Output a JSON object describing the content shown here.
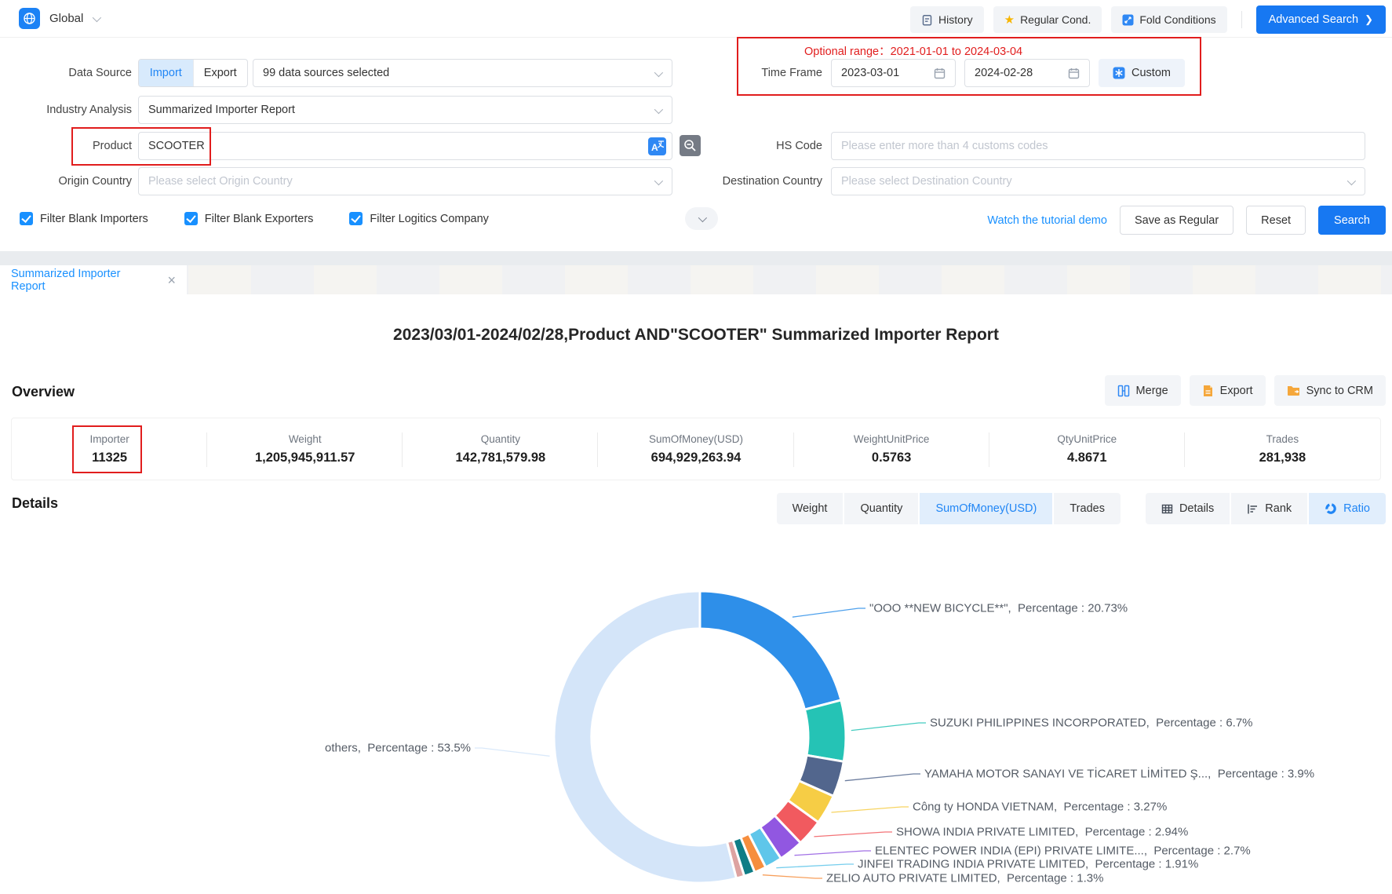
{
  "colors": {
    "accent": "#1778f2",
    "link": "#1890ff",
    "annotation": "#e11d1d",
    "star": "#f7b500",
    "doc_orange": "#f5a73b"
  },
  "topbar": {
    "region": "Global",
    "history": "History",
    "regular_cond": "Regular Cond.",
    "fold_conditions": "Fold Conditions",
    "advanced_search": "Advanced Search"
  },
  "form": {
    "data_source": {
      "label": "Data Source",
      "import": "Import",
      "export": "Export",
      "sources_value": "99 data sources selected"
    },
    "industry": {
      "label": "Industry Analysis",
      "value": "Summarized Importer Report"
    },
    "product": {
      "label": "Product",
      "value": "SCOOTER"
    },
    "origin": {
      "label": "Origin Country",
      "placeholder": "Please select Origin Country"
    },
    "hs_code": {
      "label": "HS Code",
      "placeholder": "Please enter more than 4 customs codes"
    },
    "destination": {
      "label": "Destination Country",
      "placeholder": "Please select Destination Country"
    },
    "time_frame": {
      "label": "Time Frame",
      "start": "2023-03-01",
      "end": "2024-02-28",
      "custom": "Custom",
      "optional_range": "Optional range：2021-01-01 to 2024-03-04"
    },
    "checkboxes": [
      {
        "label": "Filter Blank Importers",
        "checked": true
      },
      {
        "label": "Filter Blank Exporters",
        "checked": true
      },
      {
        "label": "Filter Logitics Company",
        "checked": true
      }
    ],
    "actions": {
      "tutorial": "Watch the tutorial demo",
      "save": "Save as Regular",
      "reset": "Reset",
      "search": "Search"
    }
  },
  "tabs": {
    "active": "Summarized Importer Report"
  },
  "report": {
    "title": "2023/03/01-2024/02/28,Product AND\"SCOOTER\" Summarized Importer Report"
  },
  "overview": {
    "heading": "Overview",
    "buttons": {
      "merge": "Merge",
      "export": "Export",
      "sync": "Sync to CRM"
    },
    "stats": [
      {
        "label": "Importer",
        "value": "11325"
      },
      {
        "label": "Weight",
        "value": "1,205,945,911.57"
      },
      {
        "label": "Quantity",
        "value": "142,781,579.98"
      },
      {
        "label": "SumOfMoney(USD)",
        "value": "694,929,263.94"
      },
      {
        "label": "WeightUnitPrice",
        "value": "0.5763"
      },
      {
        "label": "QtyUnitPrice",
        "value": "4.8671"
      },
      {
        "label": "Trades",
        "value": "281,938"
      }
    ]
  },
  "details": {
    "heading": "Details",
    "metric_tabs": [
      {
        "label": "Weight",
        "active": false
      },
      {
        "label": "Quantity",
        "active": false
      },
      {
        "label": "SumOfMoney(USD)",
        "active": true
      },
      {
        "label": "Trades",
        "active": false
      }
    ],
    "view_tabs": [
      {
        "label": "Details",
        "active": false
      },
      {
        "label": "Rank",
        "active": false
      },
      {
        "label": "Ratio",
        "active": true
      }
    ]
  },
  "chart_data": {
    "type": "pie",
    "donut": true,
    "legend_position": "none",
    "label_word": "Percentage",
    "slices": [
      {
        "name": "\"OOO **NEW BICYCLE**\"",
        "percentage": 20.73,
        "color": "#2e8fe9",
        "labeled": true
      },
      {
        "name": "SUZUKI PHILIPPINES INCORPORATED",
        "percentage": 6.7,
        "color": "#25c3b5",
        "labeled": true
      },
      {
        "name": "YAMAHA MOTOR SANAYI VE TİCARET LİMİTED Ş...",
        "percentage": 3.9,
        "color": "#52668d",
        "labeled": true
      },
      {
        "name": "Công ty HONDA VIETNAM",
        "percentage": 3.27,
        "color": "#f6cd45",
        "labeled": true
      },
      {
        "name": "SHOWA INDIA PRIVATE LIMITED",
        "percentage": 2.94,
        "color": "#f15a5f",
        "labeled": true
      },
      {
        "name": "ELENTEC POWER INDIA (EPI) PRIVATE LIMITE...",
        "percentage": 2.7,
        "color": "#9157e1",
        "labeled": true
      },
      {
        "name": "JINFEI TRADING INDIA PRIVATE LIMITED",
        "percentage": 1.91,
        "color": "#5fc6ea",
        "labeled": true
      },
      {
        "name": "ZELIO AUTO PRIVATE LIMITED",
        "percentage": 1.3,
        "color": "#f68e3e",
        "labeled": true
      },
      {
        "name": "",
        "percentage": 1.2,
        "color": "#0f7d86",
        "labeled": false,
        "estimated": true
      },
      {
        "name": "",
        "percentage": 0.9,
        "color": "#dda3a1",
        "labeled": false,
        "estimated": true
      },
      {
        "name": "others",
        "percentage": 53.5,
        "color": "#d4e5f9",
        "labeled": true
      }
    ]
  }
}
